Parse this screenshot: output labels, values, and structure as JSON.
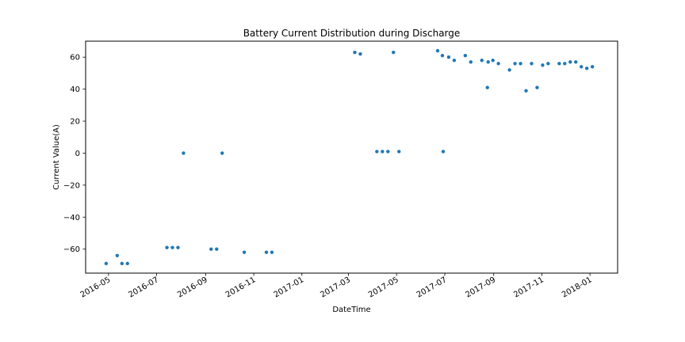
{
  "chart_data": {
    "type": "scatter",
    "title": "Battery Current Distribution during Discharge",
    "xlabel": "DateTime",
    "ylabel": "Current Value(A)",
    "x_tick_labels": [
      "2016-05",
      "2016-07",
      "2016-09",
      "2016-11",
      "2017-01",
      "2017-03",
      "2017-05",
      "2017-07",
      "2017-09",
      "2017-11",
      "2018-01"
    ],
    "y_ticks": [
      -60,
      -40,
      -20,
      0,
      20,
      40,
      60
    ],
    "y_tick_labels": [
      "−60",
      "−40",
      "−20",
      "0",
      "20",
      "40",
      "60"
    ],
    "xlim": [
      "2016-04-02",
      "2018-02-05"
    ],
    "ylim": [
      -75,
      70
    ],
    "grid": false,
    "marker_color": "#1f77b4",
    "points": [
      {
        "x": "2016-04-28",
        "y": -69
      },
      {
        "x": "2016-05-12",
        "y": -64
      },
      {
        "x": "2016-05-18",
        "y": -69
      },
      {
        "x": "2016-05-25",
        "y": -69
      },
      {
        "x": "2016-07-14",
        "y": -59
      },
      {
        "x": "2016-07-21",
        "y": -59
      },
      {
        "x": "2016-07-28",
        "y": -59
      },
      {
        "x": "2016-08-04",
        "y": 0
      },
      {
        "x": "2016-09-08",
        "y": -60
      },
      {
        "x": "2016-09-15",
        "y": -60
      },
      {
        "x": "2016-09-22",
        "y": 0
      },
      {
        "x": "2016-10-20",
        "y": -62
      },
      {
        "x": "2016-11-17",
        "y": -62
      },
      {
        "x": "2016-11-24",
        "y": -62
      },
      {
        "x": "2017-03-09",
        "y": 63
      },
      {
        "x": "2017-03-16",
        "y": 62
      },
      {
        "x": "2017-04-06",
        "y": 1
      },
      {
        "x": "2017-04-13",
        "y": 1
      },
      {
        "x": "2017-04-20",
        "y": 1
      },
      {
        "x": "2017-04-27",
        "y": 63
      },
      {
        "x": "2017-05-04",
        "y": 1
      },
      {
        "x": "2017-06-22",
        "y": 64
      },
      {
        "x": "2017-06-28",
        "y": 61
      },
      {
        "x": "2017-06-29",
        "y": 1
      },
      {
        "x": "2017-07-06",
        "y": 60
      },
      {
        "x": "2017-07-13",
        "y": 58
      },
      {
        "x": "2017-07-27",
        "y": 61
      },
      {
        "x": "2017-08-03",
        "y": 57
      },
      {
        "x": "2017-08-17",
        "y": 58
      },
      {
        "x": "2017-08-24",
        "y": 41
      },
      {
        "x": "2017-08-25",
        "y": 57
      },
      {
        "x": "2017-08-31",
        "y": 58
      },
      {
        "x": "2017-09-07",
        "y": 56
      },
      {
        "x": "2017-09-21",
        "y": 52
      },
      {
        "x": "2017-09-28",
        "y": 56
      },
      {
        "x": "2017-10-05",
        "y": 56
      },
      {
        "x": "2017-10-12",
        "y": 39
      },
      {
        "x": "2017-10-19",
        "y": 56
      },
      {
        "x": "2017-10-26",
        "y": 41
      },
      {
        "x": "2017-11-02",
        "y": 55
      },
      {
        "x": "2017-11-09",
        "y": 56
      },
      {
        "x": "2017-11-23",
        "y": 56
      },
      {
        "x": "2017-11-30",
        "y": 56
      },
      {
        "x": "2017-12-07",
        "y": 57
      },
      {
        "x": "2017-12-14",
        "y": 57
      },
      {
        "x": "2017-12-21",
        "y": 54
      },
      {
        "x": "2017-12-28",
        "y": 53
      },
      {
        "x": "2018-01-04",
        "y": 54
      }
    ]
  }
}
